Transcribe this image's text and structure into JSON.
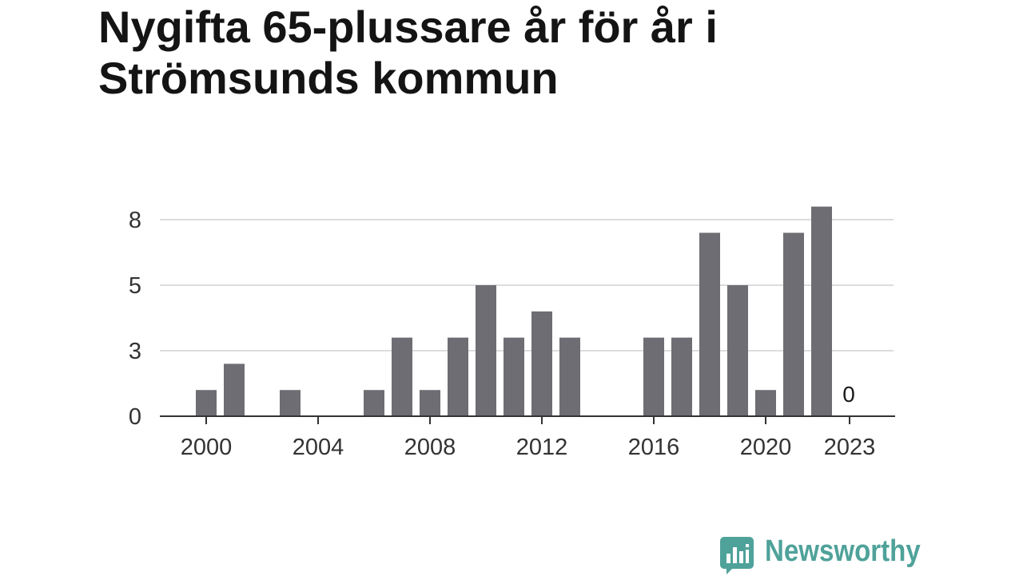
{
  "chart_data": {
    "type": "bar",
    "title": "Nygifta 65-plussare år för år i Strömsunds kommun",
    "categories": [
      2000,
      2001,
      2002,
      2003,
      2004,
      2005,
      2006,
      2007,
      2008,
      2009,
      2010,
      2011,
      2012,
      2013,
      2014,
      2015,
      2016,
      2017,
      2018,
      2019,
      2020,
      2021,
      2022,
      2023
    ],
    "values": [
      1,
      2,
      0,
      1,
      0,
      0,
      1,
      3,
      1,
      3,
      5,
      3,
      4,
      3,
      0,
      0,
      3,
      3,
      7,
      5,
      1,
      7,
      8,
      0
    ],
    "xticks": [
      2000,
      2004,
      2008,
      2012,
      2016,
      2020,
      2023
    ],
    "yticks": [
      0,
      2.5,
      5,
      7.5
    ],
    "ytick_labels": [
      "0",
      "3",
      "5",
      "8"
    ],
    "ylim": [
      0,
      8.5
    ],
    "grid": true,
    "legend": "none",
    "bar_color": "#6e6d73",
    "annotations": [
      {
        "x": 2023,
        "text": "0"
      }
    ]
  },
  "brand": {
    "name": "Newsworthy",
    "icon": "newsworthy-logo-icon",
    "color": "#4fa29a"
  }
}
